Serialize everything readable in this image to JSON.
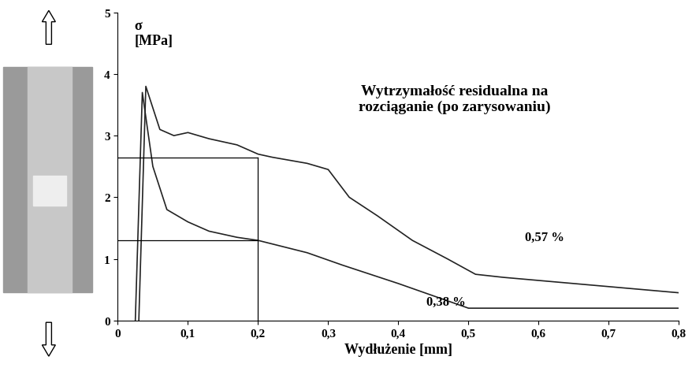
{
  "chart_data": {
    "type": "line",
    "y_label": "σ\n[MPa]",
    "x_label": "Wydłużenie [mm]",
    "annotation": "Wytrzymałość residualna na\nrozciąganie (po zarysowaniu)",
    "xlim": [
      0,
      0.8
    ],
    "ylim": [
      0,
      5
    ],
    "xticks": [
      0,
      {
        "value": 0.1,
        "label": "0,1"
      },
      {
        "value": 0.2,
        "label": "0,2"
      },
      {
        "value": 0.3,
        "label": "0,3"
      },
      {
        "value": 0.4,
        "label": "0,4"
      },
      {
        "value": 0.5,
        "label": "0,5"
      },
      {
        "value": 0.6,
        "label": "0,6"
      },
      {
        "value": 0.7,
        "label": "0,7"
      },
      {
        "value": 0.8,
        "label": "0,8"
      }
    ],
    "yticks": [
      0,
      1,
      2,
      3,
      4,
      5
    ],
    "grid": false,
    "guides": {
      "x": 0.2,
      "y": [
        2.65,
        1.3
      ]
    },
    "series": [
      {
        "name": "0,57 %",
        "color": "#222222",
        "x": [
          0.03,
          0.04,
          0.06,
          0.08,
          0.1,
          0.13,
          0.17,
          0.2,
          0.22,
          0.27,
          0.3,
          0.33,
          0.37,
          0.42,
          0.47,
          0.51,
          0.55,
          0.65,
          0.75,
          0.8
        ],
        "values": [
          0,
          3.8,
          3.1,
          3.0,
          3.05,
          2.95,
          2.85,
          2.7,
          2.65,
          2.55,
          2.45,
          2.0,
          1.7,
          1.3,
          1.0,
          0.75,
          0.7,
          0.6,
          0.5,
          0.45
        ]
      },
      {
        "name": "0,38 %",
        "color": "#222222",
        "x": [
          0.025,
          0.035,
          0.05,
          0.07,
          0.1,
          0.13,
          0.17,
          0.2,
          0.27,
          0.32,
          0.4,
          0.45,
          0.5,
          0.8
        ],
        "values": [
          0,
          3.7,
          2.5,
          1.8,
          1.6,
          1.45,
          1.35,
          1.3,
          1.1,
          0.9,
          0.6,
          0.4,
          0.2,
          0.2
        ]
      }
    ]
  }
}
